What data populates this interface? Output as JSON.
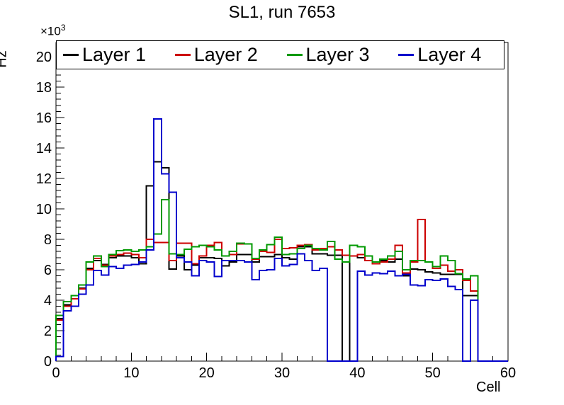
{
  "title": "SL1, run 7653",
  "chart_data": {
    "type": "step-histogram",
    "title": "SL1, run 7653",
    "xlabel": "Cell",
    "ylabel": "Hz",
    "y_scale_multiplier": "×10",
    "y_scale_exponent": "3",
    "xlim": [
      0,
      60
    ],
    "ylim": [
      0,
      20.93
    ],
    "bin_width": 1,
    "grid": false,
    "legend_position": "top-inside",
    "x_ticks": [
      0,
      10,
      20,
      30,
      40,
      50,
      60
    ],
    "y_ticks": [
      0,
      2,
      4,
      6,
      8,
      10,
      12,
      14,
      16,
      18,
      20
    ],
    "x_minor_step": 2,
    "y_minor_step": 0.4,
    "frame_color": "#000000",
    "series": [
      {
        "name": "Layer 1",
        "color": "#000000",
        "values": [
          2.8,
          3.7,
          4.1,
          4.8,
          6.1,
          6.6,
          6.35,
          6.8,
          6.9,
          6.9,
          6.8,
          6.4,
          11.5,
          13.1,
          12.7,
          6.05,
          6.9,
          6.0,
          6.3,
          6.8,
          6.8,
          6.75,
          6.25,
          6.5,
          7.0,
          7.0,
          6.5,
          6.85,
          6.85,
          7.0,
          6.8,
          6.7,
          7.5,
          7.5,
          7.05,
          7.05,
          6.95,
          6.95,
          0,
          6.9,
          6.8,
          6.6,
          6.5,
          6.6,
          6.5,
          6.7,
          5.6,
          6.05,
          6.0,
          5.85,
          5.8,
          5.7,
          5.7,
          5.7,
          4.3,
          4.3,
          0,
          0,
          0,
          0
        ]
      },
      {
        "name": "Layer 2",
        "color": "#cc0000",
        "values": [
          2.7,
          3.6,
          4.1,
          4.75,
          6.0,
          6.75,
          6.3,
          6.9,
          7.0,
          7.1,
          7.0,
          6.8,
          8.0,
          7.8,
          7.8,
          6.6,
          7.75,
          7.75,
          6.4,
          6.9,
          7.6,
          7.8,
          6.9,
          7.0,
          7.7,
          7.7,
          6.7,
          7.2,
          7.15,
          8.0,
          7.4,
          7.45,
          7.6,
          7.65,
          7.3,
          7.4,
          7.5,
          7.3,
          6.95,
          6.9,
          7.0,
          6.6,
          6.4,
          6.5,
          6.7,
          7.6,
          5.8,
          6.5,
          9.3,
          6.5,
          6.1,
          6.3,
          5.9,
          6.0,
          5.3,
          4.6,
          0,
          0,
          0,
          0
        ]
      },
      {
        "name": "Layer 3",
        "color": "#009900",
        "values": [
          3.0,
          3.9,
          4.3,
          5.0,
          6.5,
          6.9,
          6.2,
          7.0,
          7.25,
          7.3,
          7.2,
          7.3,
          7.5,
          8.35,
          10.6,
          7.05,
          7.0,
          7.35,
          7.5,
          7.6,
          7.5,
          7.3,
          6.9,
          7.2,
          7.75,
          7.7,
          6.75,
          7.3,
          7.65,
          8.15,
          7.0,
          7.05,
          7.4,
          7.6,
          7.4,
          7.3,
          7.85,
          6.7,
          6.5,
          7.6,
          7.5,
          6.9,
          6.5,
          6.7,
          6.9,
          7.2,
          6.0,
          6.6,
          6.6,
          6.5,
          6.2,
          6.9,
          6.6,
          5.75,
          5.4,
          5.6,
          0,
          0,
          0,
          0
        ]
      },
      {
        "name": "Layer 4",
        "color": "#0000cc",
        "values": [
          0.3,
          3.3,
          3.6,
          4.4,
          5.0,
          5.95,
          5.65,
          6.2,
          6.1,
          6.3,
          6.35,
          6.5,
          7.3,
          15.9,
          12.3,
          11.1,
          6.8,
          6.5,
          5.6,
          6.6,
          6.5,
          5.55,
          6.6,
          6.6,
          6.6,
          6.5,
          5.35,
          5.95,
          6.0,
          6.75,
          6.25,
          6.35,
          7.05,
          6.6,
          5.95,
          6.1,
          0,
          0,
          0,
          0,
          5.9,
          5.65,
          5.8,
          5.75,
          5.9,
          5.6,
          5.7,
          5.0,
          4.95,
          5.35,
          5.3,
          5.4,
          4.9,
          4.7,
          0,
          4.0,
          0,
          0,
          0,
          0
        ]
      }
    ]
  }
}
